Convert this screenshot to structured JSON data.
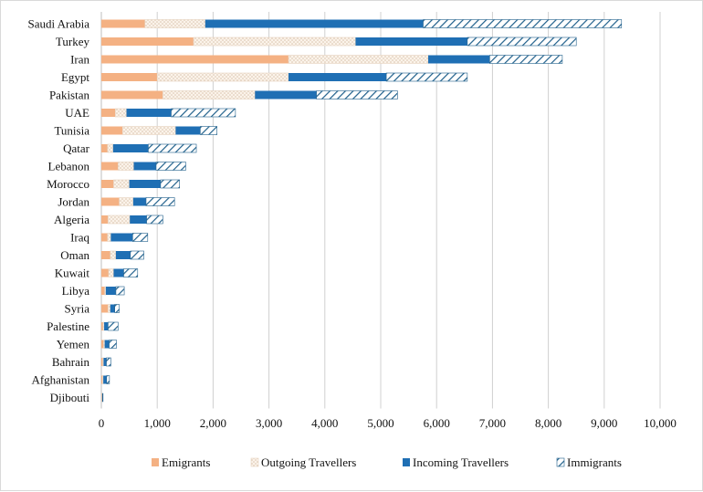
{
  "chart_data": {
    "type": "bar",
    "orientation": "horizontal",
    "stacked": true,
    "title": "",
    "xlabel": "",
    "ylabel": "",
    "xlim": [
      0,
      10000
    ],
    "x_ticks": [
      "0",
      "1,000",
      "2,000",
      "3,000",
      "4,000",
      "5,000",
      "6,000",
      "7,000",
      "8,000",
      "9,000",
      "10,000"
    ],
    "grid": "vertical",
    "legend_position": "bottom",
    "categories": [
      "Saudi Arabia",
      "Turkey",
      "Iran",
      "Egypt",
      "Pakistan",
      "UAE",
      "Tunisia",
      "Qatar",
      "Lebanon",
      "Morocco",
      "Jordan",
      "Algeria",
      "Iraq",
      "Oman",
      "Kuwait",
      "Libya",
      "Syria",
      "Palestine",
      "Yemen",
      "Bahrain",
      "Afghanistan",
      "Djibouti"
    ],
    "series": [
      {
        "name": "Emigrants",
        "color": "#f4b183",
        "pattern": "solid",
        "values": [
          780,
          1650,
          3350,
          1000,
          1100,
          250,
          380,
          110,
          300,
          220,
          320,
          120,
          110,
          160,
          130,
          60,
          120,
          30,
          40,
          25,
          20,
          10
        ]
      },
      {
        "name": "Outgoing Travellers",
        "color": "#f2e4d6",
        "pattern": "dots",
        "values": [
          1080,
          2900,
          2500,
          2350,
          1650,
          200,
          950,
          100,
          280,
          280,
          250,
          390,
          60,
          100,
          90,
          20,
          40,
          20,
          20,
          15,
          15,
          5
        ]
      },
      {
        "name": "Incoming Travellers",
        "color": "#1f6fb4",
        "pattern": "solid",
        "values": [
          3900,
          2000,
          1100,
          1750,
          1100,
          800,
          440,
          630,
          400,
          560,
          230,
          300,
          390,
          260,
          180,
          180,
          80,
          70,
          80,
          50,
          60,
          10
        ]
      },
      {
        "name": "Immigrants",
        "color": "#1f6fb4",
        "pattern": "hatch",
        "values": [
          3550,
          1950,
          1300,
          1450,
          1450,
          1150,
          300,
          860,
          530,
          340,
          510,
          290,
          270,
          240,
          250,
          150,
          80,
          180,
          130,
          80,
          50,
          5
        ]
      }
    ]
  }
}
